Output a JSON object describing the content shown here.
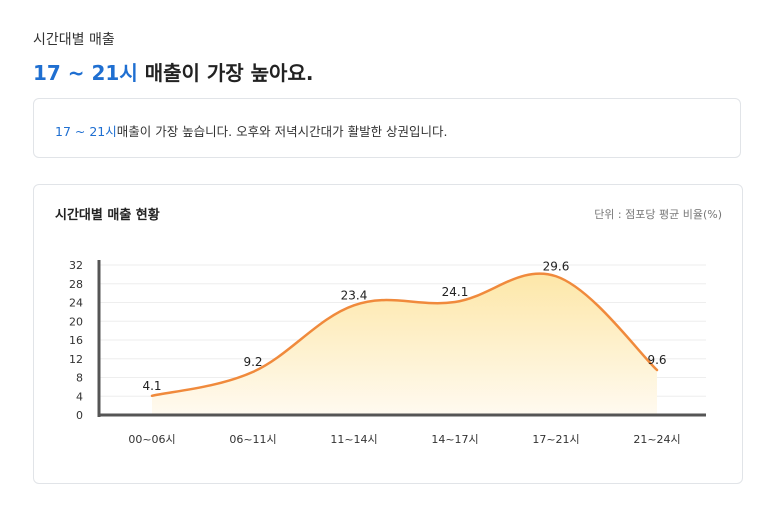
{
  "section_label": "시간대별 매출",
  "headline": {
    "highlight": "17 ~ 21시",
    "rest": " 매출이 가장 높아요."
  },
  "summary": {
    "highlight": "17 ~ 21시",
    "rest": "매출이 가장 높습니다. 오후와 저녁시간대가 활발한 상권입니다."
  },
  "chart_card": {
    "title": "시간대별 매출 현황",
    "unit": "단위 : 점포당 평균 비율(%)"
  },
  "colors": {
    "accent": "#1f6fd1",
    "line": "#f08a3c",
    "area_top": "#fde7a8",
    "area_bottom": "#fffaf0",
    "axis": "#555555",
    "grid": "#eeeeee"
  },
  "chart_data": {
    "type": "area",
    "categories": [
      "00~06시",
      "06~11시",
      "11~14시",
      "14~17시",
      "17~21시",
      "21~24시"
    ],
    "values": [
      4.1,
      9.2,
      23.4,
      24.1,
      29.6,
      9.6
    ],
    "value_labels": [
      "4.1",
      "9.2",
      "23.4",
      "24.1",
      "29.6",
      "9.6"
    ],
    "title": "시간대별 매출 현황",
    "ylabel": "단위 : 점포당 평균 비율(%)",
    "ylim": [
      0,
      32
    ],
    "yticks": [
      0,
      4,
      8,
      12,
      16,
      20,
      24,
      28,
      32
    ],
    "ytick_labels": [
      "0",
      "4",
      "8",
      "12",
      "16",
      "20",
      "24",
      "28",
      "32"
    ],
    "grid": true,
    "smooth": true
  }
}
